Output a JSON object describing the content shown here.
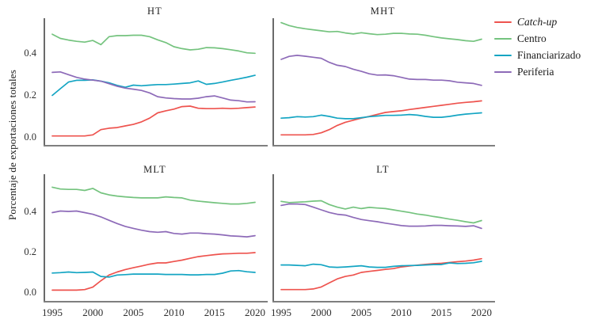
{
  "chart_data": {
    "type": "line",
    "title": "",
    "ylabel": "Porcentaje de exportaciones totales",
    "xlabel": "",
    "x": [
      1995,
      1996,
      1997,
      1998,
      1999,
      2000,
      2001,
      2002,
      2003,
      2004,
      2005,
      2006,
      2007,
      2008,
      2009,
      2010,
      2011,
      2012,
      2013,
      2014,
      2015,
      2016,
      2017,
      2018,
      2019,
      2020
    ],
    "x_ticks": [
      "1995",
      "2000",
      "2005",
      "2010",
      "2015",
      "2020"
    ],
    "y_ticks": [
      "0.0",
      "0.2",
      "0.4"
    ],
    "xlim": [
      1994,
      2021.3
    ],
    "ylim": [
      -0.04,
      0.58
    ],
    "grid": false,
    "legend_position": "top-right",
    "legend": [
      {
        "name": "Catch-up",
        "color": "#ee534e",
        "italic": true
      },
      {
        "name": "Centro",
        "color": "#74c37e",
        "italic": false
      },
      {
        "name": "Financiarizado",
        "color": "#14a5c3",
        "italic": false
      },
      {
        "name": "Periferia",
        "color": "#8d6ab8",
        "italic": false
      }
    ],
    "panels": [
      {
        "title": "HT",
        "series": {
          "Catch-up": [
            0.005,
            0.005,
            0.005,
            0.005,
            0.005,
            0.01,
            0.035,
            0.042,
            0.045,
            0.053,
            0.06,
            0.072,
            0.09,
            0.115,
            0.125,
            0.133,
            0.145,
            0.147,
            0.137,
            0.135,
            0.135,
            0.137,
            0.135,
            0.137,
            0.14,
            0.143
          ],
          "Centro": [
            0.49,
            0.47,
            0.462,
            0.456,
            0.452,
            0.46,
            0.44,
            0.478,
            0.483,
            0.483,
            0.485,
            0.485,
            0.478,
            0.463,
            0.45,
            0.43,
            0.421,
            0.415,
            0.418,
            0.426,
            0.425,
            0.421,
            0.416,
            0.41,
            0.401,
            0.399
          ],
          "Financiarizado": [
            0.198,
            0.23,
            0.262,
            0.27,
            0.27,
            0.272,
            0.266,
            0.258,
            0.246,
            0.237,
            0.247,
            0.244,
            0.247,
            0.25,
            0.25,
            0.252,
            0.255,
            0.258,
            0.267,
            0.251,
            0.255,
            0.262,
            0.27,
            0.277,
            0.285,
            0.294
          ],
          "Periferia": [
            0.308,
            0.31,
            0.297,
            0.284,
            0.276,
            0.271,
            0.266,
            0.254,
            0.242,
            0.233,
            0.228,
            0.222,
            0.21,
            0.192,
            0.186,
            0.183,
            0.181,
            0.181,
            0.185,
            0.192,
            0.196,
            0.186,
            0.176,
            0.173,
            0.167,
            0.168
          ]
        }
      },
      {
        "title": "MHT",
        "series": {
          "Catch-up": [
            0.01,
            0.01,
            0.01,
            0.01,
            0.012,
            0.02,
            0.035,
            0.055,
            0.07,
            0.08,
            0.09,
            0.098,
            0.108,
            0.117,
            0.121,
            0.125,
            0.131,
            0.136,
            0.141,
            0.146,
            0.151,
            0.156,
            0.161,
            0.165,
            0.168,
            0.172
          ],
          "Centro": [
            0.545,
            0.531,
            0.522,
            0.516,
            0.511,
            0.506,
            0.501,
            0.503,
            0.496,
            0.491,
            0.497,
            0.492,
            0.488,
            0.49,
            0.494,
            0.494,
            0.491,
            0.49,
            0.485,
            0.478,
            0.472,
            0.468,
            0.464,
            0.459,
            0.456,
            0.466
          ],
          "Financiarizado": [
            0.09,
            0.092,
            0.097,
            0.095,
            0.097,
            0.104,
            0.098,
            0.09,
            0.087,
            0.087,
            0.092,
            0.097,
            0.1,
            0.103,
            0.103,
            0.104,
            0.107,
            0.104,
            0.098,
            0.094,
            0.094,
            0.098,
            0.104,
            0.109,
            0.112,
            0.115
          ],
          "Periferia": [
            0.37,
            0.384,
            0.389,
            0.385,
            0.38,
            0.375,
            0.356,
            0.342,
            0.336,
            0.323,
            0.313,
            0.301,
            0.295,
            0.296,
            0.292,
            0.284,
            0.276,
            0.274,
            0.274,
            0.271,
            0.271,
            0.268,
            0.261,
            0.258,
            0.255,
            0.246
          ]
        }
      },
      {
        "title": "MLT",
        "series": {
          "Catch-up": [
            0.01,
            0.01,
            0.01,
            0.01,
            0.013,
            0.025,
            0.057,
            0.085,
            0.1,
            0.112,
            0.121,
            0.13,
            0.139,
            0.145,
            0.145,
            0.152,
            0.159,
            0.168,
            0.176,
            0.181,
            0.186,
            0.19,
            0.191,
            0.193,
            0.193,
            0.196
          ],
          "Centro": [
            0.52,
            0.511,
            0.509,
            0.509,
            0.504,
            0.514,
            0.492,
            0.482,
            0.476,
            0.472,
            0.469,
            0.467,
            0.467,
            0.467,
            0.472,
            0.469,
            0.467,
            0.456,
            0.451,
            0.447,
            0.443,
            0.44,
            0.437,
            0.437,
            0.44,
            0.445
          ],
          "Financiarizado": [
            0.095,
            0.097,
            0.1,
            0.097,
            0.098,
            0.1,
            0.078,
            0.075,
            0.085,
            0.087,
            0.09,
            0.09,
            0.09,
            0.09,
            0.088,
            0.088,
            0.088,
            0.086,
            0.086,
            0.088,
            0.088,
            0.094,
            0.105,
            0.107,
            0.101,
            0.098
          ],
          "Periferia": [
            0.394,
            0.402,
            0.4,
            0.402,
            0.394,
            0.386,
            0.373,
            0.356,
            0.34,
            0.326,
            0.316,
            0.307,
            0.3,
            0.297,
            0.3,
            0.291,
            0.288,
            0.293,
            0.293,
            0.29,
            0.288,
            0.284,
            0.279,
            0.277,
            0.274,
            0.28
          ]
        }
      },
      {
        "title": "LT",
        "series": {
          "Catch-up": [
            0.013,
            0.013,
            0.013,
            0.013,
            0.016,
            0.026,
            0.046,
            0.066,
            0.078,
            0.085,
            0.098,
            0.103,
            0.108,
            0.113,
            0.117,
            0.125,
            0.13,
            0.134,
            0.138,
            0.141,
            0.143,
            0.147,
            0.151,
            0.154,
            0.159,
            0.166
          ],
          "Centro": [
            0.45,
            0.444,
            0.446,
            0.448,
            0.451,
            0.453,
            0.434,
            0.421,
            0.412,
            0.421,
            0.414,
            0.42,
            0.417,
            0.414,
            0.408,
            0.401,
            0.395,
            0.387,
            0.382,
            0.375,
            0.369,
            0.362,
            0.356,
            0.349,
            0.343,
            0.355
          ],
          "Financiarizado": [
            0.135,
            0.135,
            0.133,
            0.131,
            0.139,
            0.136,
            0.125,
            0.123,
            0.125,
            0.128,
            0.131,
            0.125,
            0.123,
            0.123,
            0.128,
            0.131,
            0.132,
            0.133,
            0.135,
            0.137,
            0.137,
            0.145,
            0.142,
            0.143,
            0.146,
            0.153
          ],
          "Periferia": [
            0.43,
            0.437,
            0.437,
            0.434,
            0.421,
            0.408,
            0.395,
            0.386,
            0.382,
            0.37,
            0.36,
            0.354,
            0.349,
            0.342,
            0.336,
            0.33,
            0.327,
            0.327,
            0.328,
            0.331,
            0.331,
            0.329,
            0.328,
            0.326,
            0.329,
            0.316
          ]
        }
      }
    ],
    "axis_colors": {
      "y_axis": "#2b2b2b",
      "x_axis": "#7f7f7f"
    }
  }
}
